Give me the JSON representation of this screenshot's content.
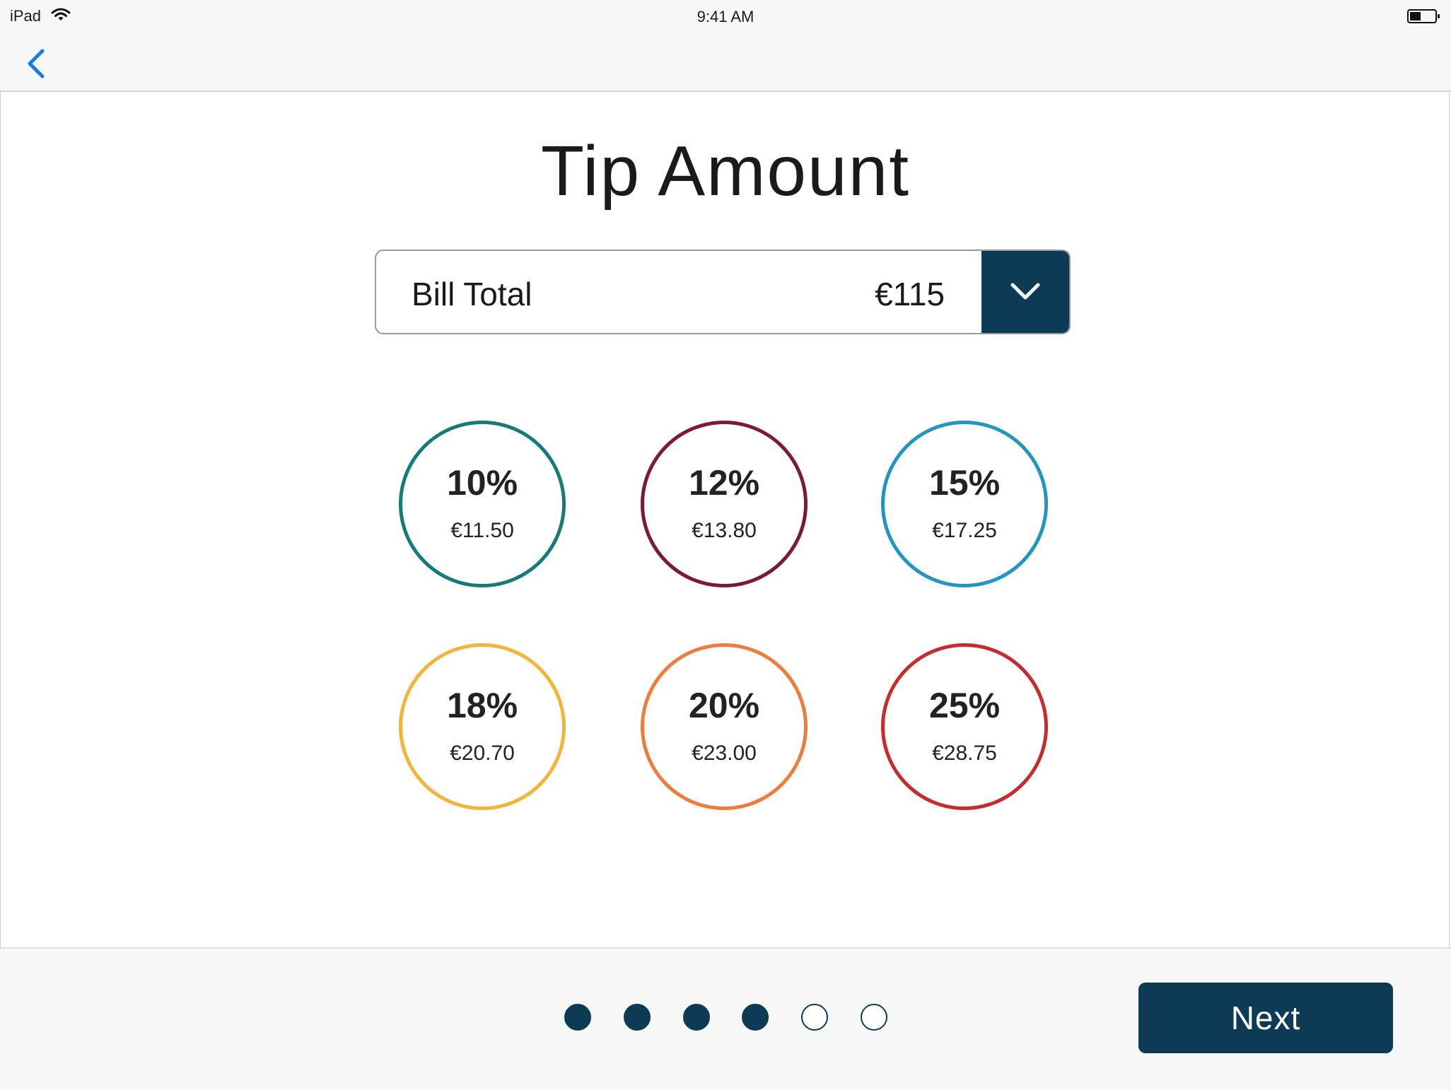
{
  "status_bar": {
    "device": "iPad",
    "time": "9:41 AM",
    "wifi_icon": "wifi-icon",
    "battery_icon": "battery-icon"
  },
  "nav": {
    "back_icon": "chevron-left-icon",
    "accent_color": "#1a7ce0"
  },
  "page": {
    "title": "Tip Amount"
  },
  "bill": {
    "label": "Bill Total",
    "value": "€115",
    "toggle_icon": "chevron-down-icon"
  },
  "tip_options": [
    {
      "percent": "10%",
      "amount": "€11.50",
      "color": "#167a7a"
    },
    {
      "percent": "12%",
      "amount": "€13.80",
      "color": "#7d1838"
    },
    {
      "percent": "15%",
      "amount": "€17.25",
      "color": "#2196c0"
    },
    {
      "percent": "18%",
      "amount": "€20.70",
      "color": "#f4b43a"
    },
    {
      "percent": "20%",
      "amount": "€23.00",
      "color": "#ee7d3c"
    },
    {
      "percent": "25%",
      "amount": "€28.75",
      "color": "#c62b2e"
    }
  ],
  "pager": {
    "total": 6,
    "completed": 4
  },
  "footer": {
    "next_label": "Next"
  },
  "colors": {
    "primary": "#0d3b55"
  }
}
